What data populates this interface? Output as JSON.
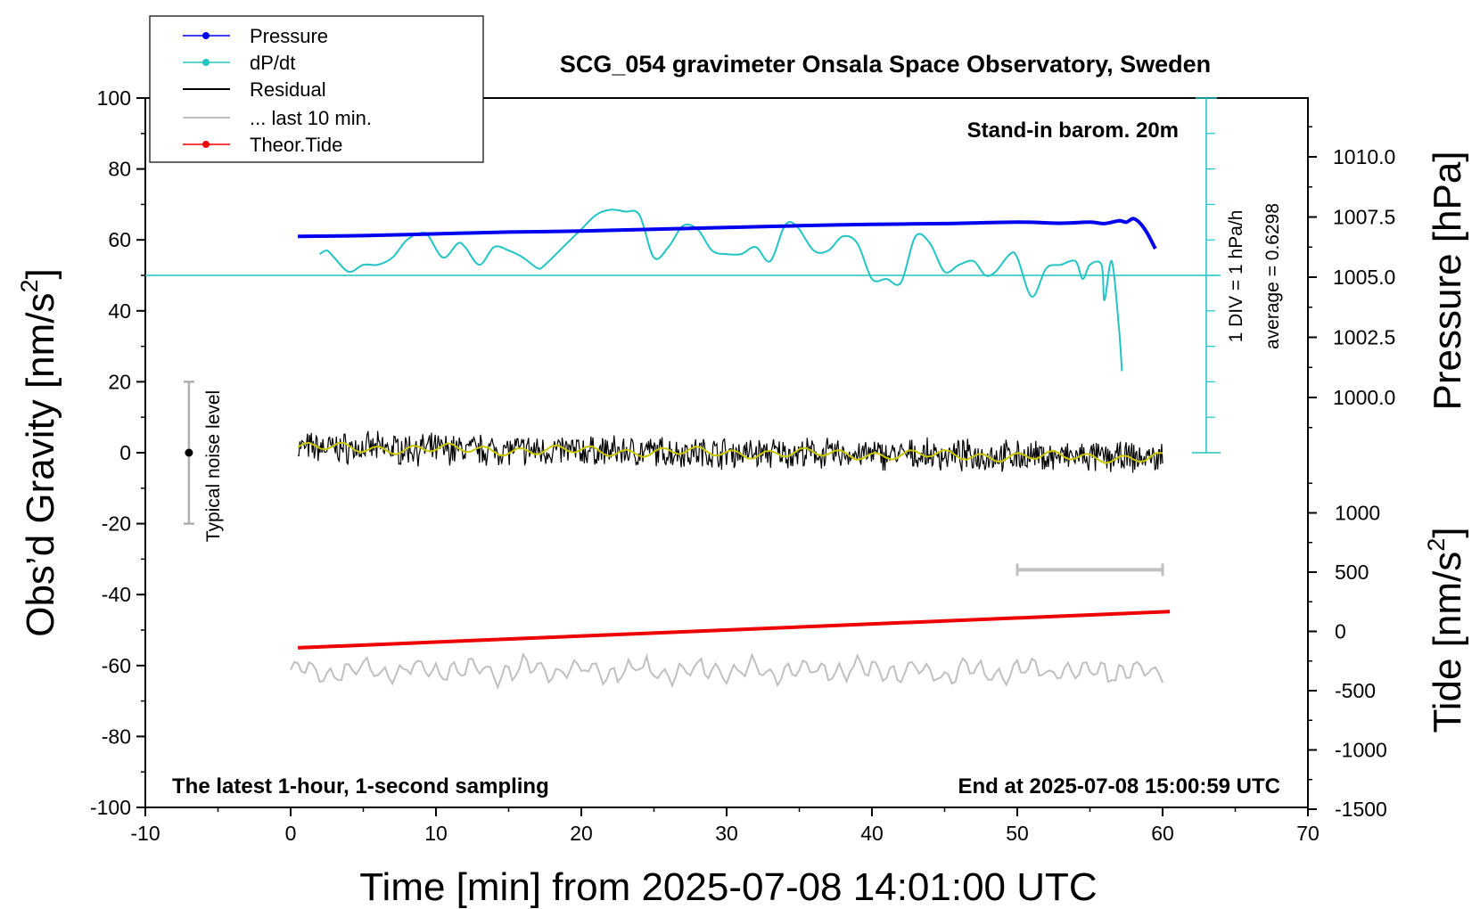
{
  "chart_data": {
    "type": "line",
    "title": "SCG_054 gravimeter Onsala Space Observatory, Sweden",
    "xlabel": "Time [min] from 2025-07-08 14:01:00 UTC",
    "ylabel_left": "Obs’d Gravity [nm/s²]",
    "ylabel_left_text": "Obs’d Gravity [nm/s",
    "ylabel_left_sup": "2",
    "ylabel_left_close": "]",
    "ylabel_right_top": "Pressure [hPa]",
    "ylabel_right_bottom": "Tide [nm/s²]",
    "ylabel_right_bottom_text": "Tide [nm/s",
    "ylabel_right_bottom_sup": "2",
    "ylabel_right_bottom_close": "]",
    "xlim": [
      -10,
      70
    ],
    "ylim_left": [
      -100,
      100
    ],
    "x_ticks": [
      -10,
      0,
      10,
      20,
      30,
      40,
      50,
      60,
      70
    ],
    "x_tick_labels": [
      "-10",
      "0",
      "10",
      "20",
      "30",
      "40",
      "50",
      "60",
      "70"
    ],
    "y_left_ticks": [
      100,
      80,
      60,
      40,
      20,
      0,
      -20,
      -40,
      -60,
      -80,
      -100
    ],
    "y_left_tick_labels": [
      "100",
      "80",
      "60",
      "40",
      "20",
      "0",
      "-20",
      "-40",
      "-60",
      "-80",
      "-100"
    ],
    "pressure_ticks": [
      1010.0,
      1007.5,
      1005.0,
      1002.5,
      1000.0
    ],
    "pressure_tick_labels": [
      "1010.0",
      "1007.5",
      "1005.0",
      "1002.5",
      "1000.0"
    ],
    "tide_ticks": [
      1000,
      500,
      0,
      -500,
      -1000,
      -1500
    ],
    "tide_tick_labels": [
      "1000",
      "500",
      "0",
      "-500",
      "-1000",
      "-1500"
    ],
    "legend": {
      "placement": "top-left",
      "entries": [
        "Pressure",
        "dP/dt",
        "Residual",
        "... last 10 min.",
        "Theor.Tide"
      ]
    },
    "annotations": {
      "barometer_note": "Stand-in barom. 20m",
      "div_note": "1 DIV = 1 hPa/h",
      "average_note": "average = 0.6298",
      "noise_label": "Typical noise level",
      "bottom_left_note": "The latest 1-hour, 1-second sampling",
      "bottom_right_note": "End at 2025-07-08 15:00:59 UTC"
    },
    "colors": {
      "pressure": "#0000ee",
      "dpdt": "#22c4c4",
      "residual": "#000000",
      "residual_smooth": "#c8c800",
      "last10": "#c0c0c0",
      "tide": "#ee0000"
    },
    "noise_bar": {
      "x": -7,
      "center": 0,
      "low": -20,
      "high": 20
    },
    "last10_bar": {
      "x_start": 50,
      "x_end": 60,
      "y": -33
    },
    "dpdt_baseline": 50,
    "dpdt_scale": {
      "x": 63,
      "bottom": 0,
      "top": 100,
      "div": 10
    },
    "series": [
      {
        "name": "Pressure",
        "x": [
          0.5,
          5,
          10,
          15,
          20,
          25,
          30,
          35,
          40,
          45,
          50,
          53,
          55,
          56,
          57,
          57.5,
          58,
          58.5,
          59,
          59.5
        ],
        "y": [
          61.0,
          61.2,
          61.7,
          62.2,
          62.5,
          63.0,
          63.5,
          64.0,
          64.4,
          64.6,
          65.0,
          64.7,
          65.0,
          64.6,
          65.4,
          65.0,
          66.0,
          64.5,
          61.5,
          57.5
        ]
      },
      {
        "name": "dP/dt",
        "x": [
          2,
          2.5,
          3,
          4,
          5,
          6,
          7,
          8,
          9,
          9.5,
          10.5,
          11.5,
          12,
          13,
          14,
          15,
          16,
          17,
          17.5,
          19,
          20,
          21,
          22,
          23,
          24,
          25,
          26,
          27,
          28,
          29,
          30,
          31,
          32,
          33,
          34,
          34.8,
          36,
          37,
          38,
          39,
          40,
          41,
          42,
          43,
          44,
          45,
          46,
          47,
          47.8,
          48.5,
          49.5,
          50,
          51,
          52,
          53,
          54,
          54.5,
          55,
          55.8,
          56,
          56.5,
          57,
          57.2
        ],
        "y": [
          56,
          57,
          55,
          51,
          53,
          53,
          55,
          60,
          62,
          61,
          55,
          59,
          58,
          53,
          58,
          57,
          55,
          52,
          53,
          59,
          63,
          67,
          68.5,
          68,
          67,
          55,
          58,
          64,
          63,
          57,
          56,
          56,
          58,
          54,
          64,
          64,
          57,
          57,
          61,
          59,
          49,
          49,
          48,
          61,
          59,
          51,
          53,
          54,
          50,
          51,
          56,
          55,
          44,
          52,
          53,
          54,
          49,
          53,
          53,
          43,
          54,
          35,
          23
        ]
      },
      {
        "name": "Residual",
        "x": [
          0.5,
          60
        ],
        "y": [
          1.5,
          -1.5
        ]
      },
      {
        "name": "... last 10 min.",
        "x": [
          0,
          60
        ],
        "y": [
          -61.5,
          -61.5
        ]
      },
      {
        "name": "Theor.Tide",
        "x": [
          0.5,
          60.5
        ],
        "y": [
          -55,
          -44.8
        ]
      }
    ]
  }
}
